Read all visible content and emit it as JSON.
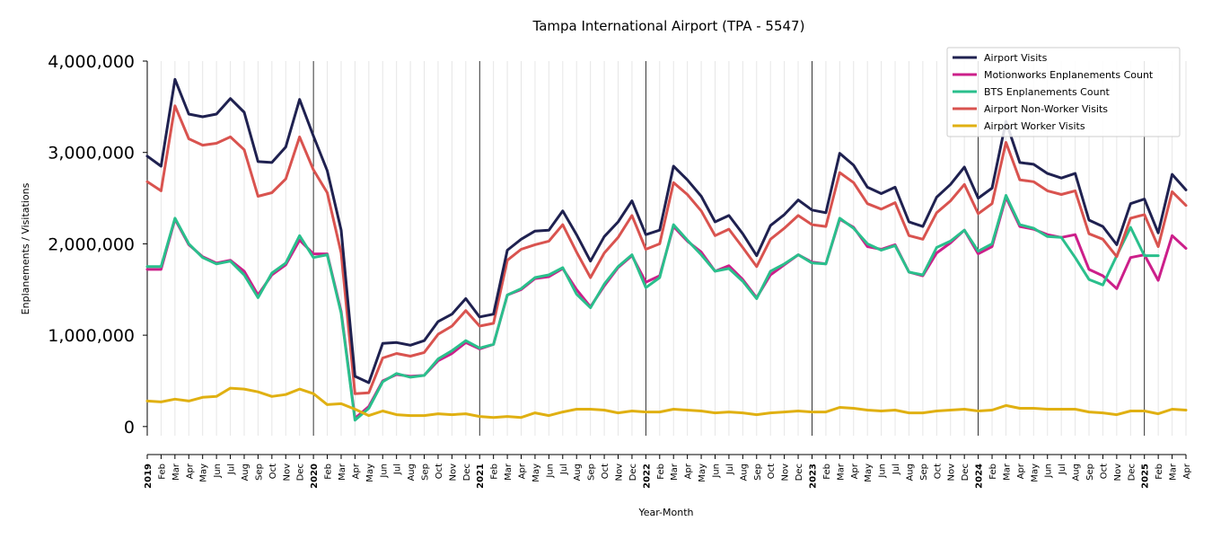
{
  "chart_data": {
    "type": "line",
    "title": "Tampa International Airport (TPA - 5547)",
    "xlabel": "Year-Month",
    "ylabel": "Enplanements / Visitations",
    "ylim": [
      -100000,
      4000000
    ],
    "yticks": [
      0,
      1000000,
      2000000,
      3000000,
      4000000
    ],
    "ytick_labels": [
      "0",
      "1,000,000",
      "2,000,000",
      "3,000,000",
      "4,000,000"
    ],
    "grid": "vertical lines each month; thicker at year start",
    "legend_position": "top-right",
    "x_tick_labels": [
      "2019",
      "Feb",
      "Mar",
      "Apr",
      "May",
      "Jun",
      "Jul",
      "Aug",
      "Sep",
      "Oct",
      "Nov",
      "Dec",
      "2020",
      "Feb",
      "Mar",
      "Apr",
      "May",
      "Jun",
      "Jul",
      "Aug",
      "Sep",
      "Oct",
      "Nov",
      "Dec",
      "2021",
      "Feb",
      "Mar",
      "Apr",
      "May",
      "Jun",
      "Jul",
      "Aug",
      "Sep",
      "Oct",
      "Nov",
      "Dec",
      "2022",
      "Feb",
      "Mar",
      "Apr",
      "May",
      "Jun",
      "Jul",
      "Aug",
      "Sep",
      "Oct",
      "Nov",
      "Dec",
      "2023",
      "Feb",
      "Mar",
      "Apr",
      "May",
      "Jun",
      "Jul",
      "Aug",
      "Sep",
      "Oct",
      "Nov",
      "Dec",
      "2024",
      "Feb",
      "Mar",
      "Apr",
      "May",
      "Jun",
      "Jul",
      "Aug",
      "Sep",
      "Oct",
      "Nov",
      "Dec",
      "2025",
      "Feb",
      "Mar",
      "Apr"
    ],
    "series": [
      {
        "name": "Airport Visits",
        "color": "#1f2150",
        "values": [
          2960000,
          2850000,
          3800000,
          3420000,
          3390000,
          3420000,
          3590000,
          3440000,
          2900000,
          2890000,
          3060000,
          3580000,
          3180000,
          2800000,
          2150000,
          550000,
          480000,
          910000,
          920000,
          890000,
          940000,
          1150000,
          1230000,
          1400000,
          1200000,
          1230000,
          1930000,
          2050000,
          2140000,
          2150000,
          2360000,
          2100000,
          1810000,
          2080000,
          2240000,
          2470000,
          2100000,
          2150000,
          2850000,
          2700000,
          2520000,
          2240000,
          2310000,
          2110000,
          1870000,
          2200000,
          2320000,
          2480000,
          2370000,
          2340000,
          2990000,
          2860000,
          2620000,
          2550000,
          2620000,
          2240000,
          2190000,
          2510000,
          2650000,
          2840000,
          2500000,
          2610000,
          3340000,
          2890000,
          2870000,
          2770000,
          2720000,
          2770000,
          2260000,
          2190000,
          1990000,
          2440000,
          2490000,
          2120000,
          2760000,
          2590000
        ]
      },
      {
        "name": "Motionworks Enplanements Count",
        "color": "#cc1f8a",
        "values": [
          1720000,
          1720000,
          2270000,
          1990000,
          1860000,
          1790000,
          1820000,
          1700000,
          1440000,
          1660000,
          1770000,
          2040000,
          1890000,
          1890000,
          1260000,
          90000,
          220000,
          500000,
          570000,
          550000,
          560000,
          720000,
          800000,
          920000,
          850000,
          900000,
          1440000,
          1500000,
          1620000,
          1640000,
          1730000,
          1500000,
          1310000,
          1540000,
          1740000,
          1870000,
          1580000,
          1650000,
          2190000,
          2030000,
          1910000,
          1700000,
          1760000,
          1610000,
          1410000,
          1660000,
          1770000,
          1880000,
          1800000,
          1780000,
          2270000,
          2180000,
          1970000,
          1940000,
          1990000,
          1690000,
          1650000,
          1900000,
          2010000,
          2150000,
          1890000,
          1970000,
          2510000,
          2190000,
          2160000,
          2100000,
          2070000,
          2100000,
          1720000,
          1650000,
          1510000,
          1850000,
          1880000,
          1600000,
          2090000,
          1950000
        ]
      },
      {
        "name": "BTS Enplanements Count",
        "color": "#2abf8c",
        "values": [
          1750000,
          1750000,
          2280000,
          2000000,
          1850000,
          1780000,
          1810000,
          1660000,
          1410000,
          1680000,
          1790000,
          2090000,
          1850000,
          1880000,
          1240000,
          70000,
          200000,
          490000,
          580000,
          540000,
          560000,
          740000,
          830000,
          940000,
          860000,
          900000,
          1440000,
          1510000,
          1630000,
          1660000,
          1740000,
          1450000,
          1300000,
          1560000,
          1750000,
          1880000,
          1520000,
          1630000,
          2210000,
          2040000,
          1880000,
          1700000,
          1730000,
          1590000,
          1400000,
          1700000,
          1780000,
          1880000,
          1790000,
          1780000,
          2280000,
          2170000,
          2000000,
          1930000,
          1980000,
          1690000,
          1660000,
          1960000,
          2030000,
          2150000,
          1920000,
          2000000,
          2530000,
          2210000,
          2170000,
          2080000,
          2070000,
          1850000,
          1610000,
          1550000,
          1870000,
          2180000,
          1870000,
          1870000,
          null,
          null
        ]
      },
      {
        "name": "Airport Non-Worker Visits",
        "color": "#d9534f",
        "values": [
          2680000,
          2580000,
          3510000,
          3150000,
          3080000,
          3100000,
          3170000,
          3030000,
          2520000,
          2560000,
          2710000,
          3170000,
          2810000,
          2560000,
          1900000,
          360000,
          370000,
          750000,
          800000,
          770000,
          810000,
          1010000,
          1100000,
          1270000,
          1100000,
          1130000,
          1820000,
          1940000,
          1990000,
          2030000,
          2210000,
          1910000,
          1630000,
          1900000,
          2070000,
          2310000,
          1940000,
          2000000,
          2670000,
          2540000,
          2360000,
          2090000,
          2160000,
          1960000,
          1750000,
          2050000,
          2170000,
          2310000,
          2210000,
          2190000,
          2780000,
          2670000,
          2440000,
          2380000,
          2450000,
          2090000,
          2050000,
          2340000,
          2470000,
          2650000,
          2330000,
          2440000,
          3110000,
          2700000,
          2680000,
          2580000,
          2540000,
          2580000,
          2110000,
          2050000,
          1860000,
          2280000,
          2320000,
          1970000,
          2570000,
          2420000
        ]
      },
      {
        "name": "Airport Worker Visits",
        "color": "#e0b012",
        "values": [
          280000,
          270000,
          300000,
          280000,
          320000,
          330000,
          420000,
          410000,
          380000,
          330000,
          350000,
          410000,
          360000,
          240000,
          250000,
          190000,
          120000,
          170000,
          130000,
          120000,
          120000,
          140000,
          130000,
          140000,
          110000,
          100000,
          110000,
          100000,
          150000,
          120000,
          160000,
          190000,
          190000,
          180000,
          150000,
          170000,
          160000,
          160000,
          190000,
          180000,
          170000,
          150000,
          160000,
          150000,
          130000,
          150000,
          160000,
          170000,
          160000,
          160000,
          210000,
          200000,
          180000,
          170000,
          180000,
          150000,
          150000,
          170000,
          180000,
          190000,
          170000,
          180000,
          230000,
          200000,
          200000,
          190000,
          190000,
          190000,
          160000,
          150000,
          130000,
          170000,
          170000,
          140000,
          190000,
          180000
        ]
      }
    ]
  }
}
